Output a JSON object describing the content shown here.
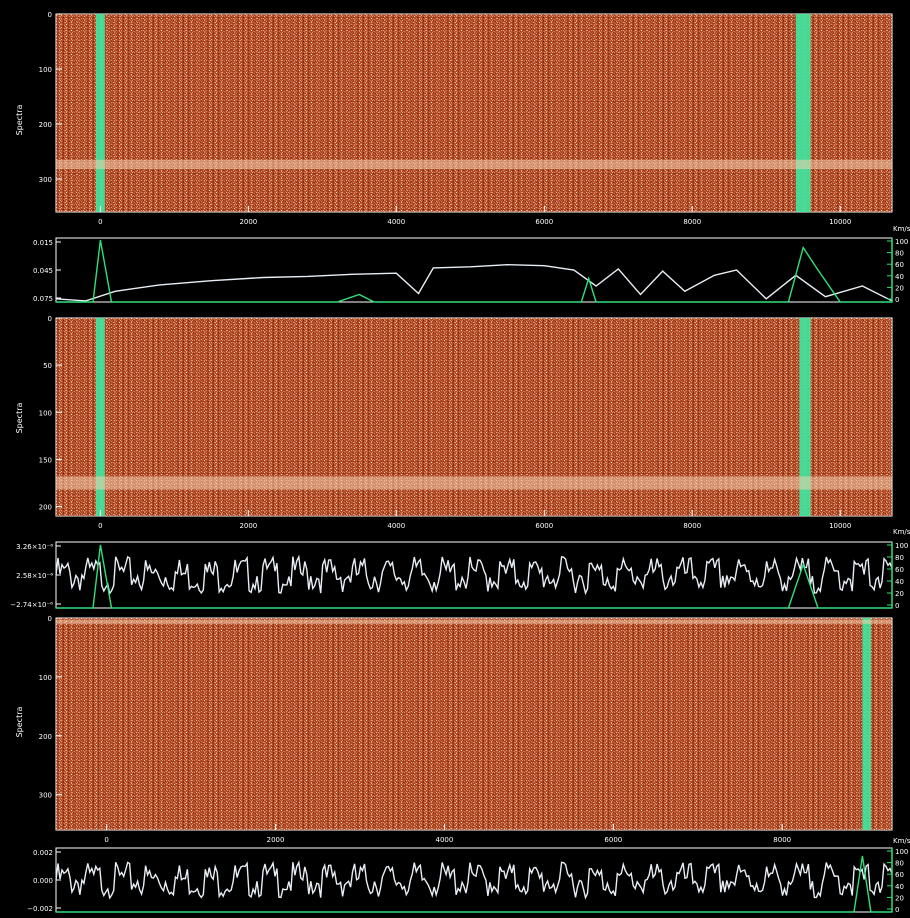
{
  "chart_data": [
    {
      "type": "heatmap",
      "ylabel": "Spectra",
      "xunit": "Km/s",
      "xlim": [
        -600,
        10700
      ],
      "ylim": [
        0,
        360
      ],
      "x_ticks": [
        "0",
        "2000",
        "4000",
        "6000",
        "8000",
        "10000"
      ],
      "y_ticks": [
        "0",
        "100",
        "200",
        "300"
      ],
      "colormap": [
        "#000000",
        "#5a1a08",
        "#b0451c",
        "#d86a3a",
        "#f5d0b0",
        "#ffffff"
      ],
      "flag_color": "#3ee8a0",
      "flagged_velocity_bands": [
        [
          -60,
          60
        ],
        [
          9400,
          9600
        ]
      ],
      "bright_row_band": [
        265,
        282
      ]
    },
    {
      "type": "line",
      "xlim": [
        -600,
        10700
      ],
      "ylim": [
        0.015,
        0.075
      ],
      "y_ticks": [
        "0.015",
        "0.045",
        "0.075"
      ],
      "right_axis_ticks": [
        "0",
        "20",
        "40",
        "60",
        "80",
        "100"
      ],
      "series": [
        {
          "color": "#e8eef5",
          "x": [
            -600,
            -200,
            200,
            800,
            1500,
            2200,
            2800,
            3400,
            4000,
            4300,
            4500,
            5000,
            5500,
            6000,
            6400,
            6700,
            7000,
            7300,
            7600,
            7900,
            8300,
            8600,
            9000,
            9400,
            9800,
            10300,
            10700
          ],
          "y": [
            0.018,
            0.016,
            0.025,
            0.031,
            0.035,
            0.038,
            0.039,
            0.041,
            0.042,
            0.023,
            0.047,
            0.048,
            0.05,
            0.049,
            0.045,
            0.03,
            0.046,
            0.022,
            0.044,
            0.025,
            0.04,
            0.045,
            0.018,
            0.04,
            0.02,
            0.03,
            0.016
          ]
        },
        {
          "color": "#2fe07a",
          "x": [
            -600,
            -100,
            0,
            150,
            3200,
            3500,
            3700,
            6500,
            6600,
            6700,
            9300,
            9500,
            9700,
            10000,
            10700
          ],
          "y": [
            0.015,
            0.015,
            0.073,
            0.015,
            0.015,
            0.022,
            0.015,
            0.015,
            0.037,
            0.015,
            0.015,
            0.066,
            0.045,
            0.015,
            0.015
          ]
        }
      ]
    },
    {
      "type": "heatmap",
      "ylabel": "Spectra",
      "xunit": "Km/s",
      "xlim": [
        -600,
        10700
      ],
      "ylim": [
        0,
        210
      ],
      "x_ticks": [
        "0",
        "2000",
        "4000",
        "6000",
        "8000",
        "10000"
      ],
      "y_ticks": [
        "0",
        "50",
        "100",
        "150",
        "200"
      ],
      "colormap": [
        "#000000",
        "#5a1a08",
        "#b0451c",
        "#d86a3a",
        "#f5d0b0",
        "#ffffff"
      ],
      "flag_color": "#3ee8a0",
      "flagged_velocity_bands": [
        [
          -60,
          60
        ],
        [
          9450,
          9600
        ]
      ],
      "bright_row_band": [
        168,
        182
      ]
    },
    {
      "type": "line",
      "xlim": [
        -600,
        10700
      ],
      "ylim": [
        -2.74e-06,
        3.26e-06
      ],
      "y_ticks": [
        "3.26×10⁻⁶",
        "2.58×10⁻⁶",
        "−2.74×10⁻⁶"
      ],
      "right_axis_ticks": [
        "0",
        "20",
        "40",
        "60",
        "80",
        "100"
      ],
      "series": [
        {
          "color": "#e8eef5",
          "x": [
            -600,
            10700
          ],
          "y": [
            2.6e-07,
            2.6e-07
          ]
        },
        {
          "color": "#2fe07a",
          "x": [
            -600,
            -100,
            0,
            150,
            9300,
            9500,
            9700,
            10700
          ],
          "y": [
            -2.74e-06,
            -2.74e-06,
            3e-06,
            -2.74e-06,
            -2.74e-06,
            1.2e-06,
            -2.74e-06,
            -2.74e-06
          ]
        }
      ]
    },
    {
      "type": "heatmap",
      "ylabel": "Spectra",
      "xunit": "Km/s",
      "xlim": [
        -600,
        9300
      ],
      "ylim": [
        0,
        360
      ],
      "x_ticks": [
        "0",
        "2000",
        "4000",
        "6000",
        "8000"
      ],
      "y_ticks": [
        "0",
        "100",
        "200",
        "300"
      ],
      "colormap": [
        "#000000",
        "#5a1a08",
        "#b0451c",
        "#d86a3a",
        "#f5d0b0",
        "#ffffff"
      ],
      "flag_color": "#3ee8a0",
      "flagged_velocity_bands": [
        [
          8950,
          9050
        ]
      ],
      "bright_row_band": [
        3,
        10
      ]
    },
    {
      "type": "line",
      "xlim": [
        -600,
        9300
      ],
      "ylim": [
        -0.002,
        0.002
      ],
      "y_ticks": [
        "0.002",
        "0.000",
        "−0.002"
      ],
      "right_axis_ticks": [
        "0",
        "20",
        "40",
        "60",
        "80",
        "100"
      ],
      "series": [
        {
          "color": "#e8eef5",
          "x": [
            -600,
            9300
          ],
          "y": [
            0.0,
            0.0
          ]
        },
        {
          "color": "#2fe07a",
          "x": [
            -600,
            8850,
            8950,
            9050,
            9300
          ],
          "y": [
            -0.002,
            -0.002,
            0.0015,
            -0.002,
            -0.002
          ]
        }
      ]
    }
  ]
}
